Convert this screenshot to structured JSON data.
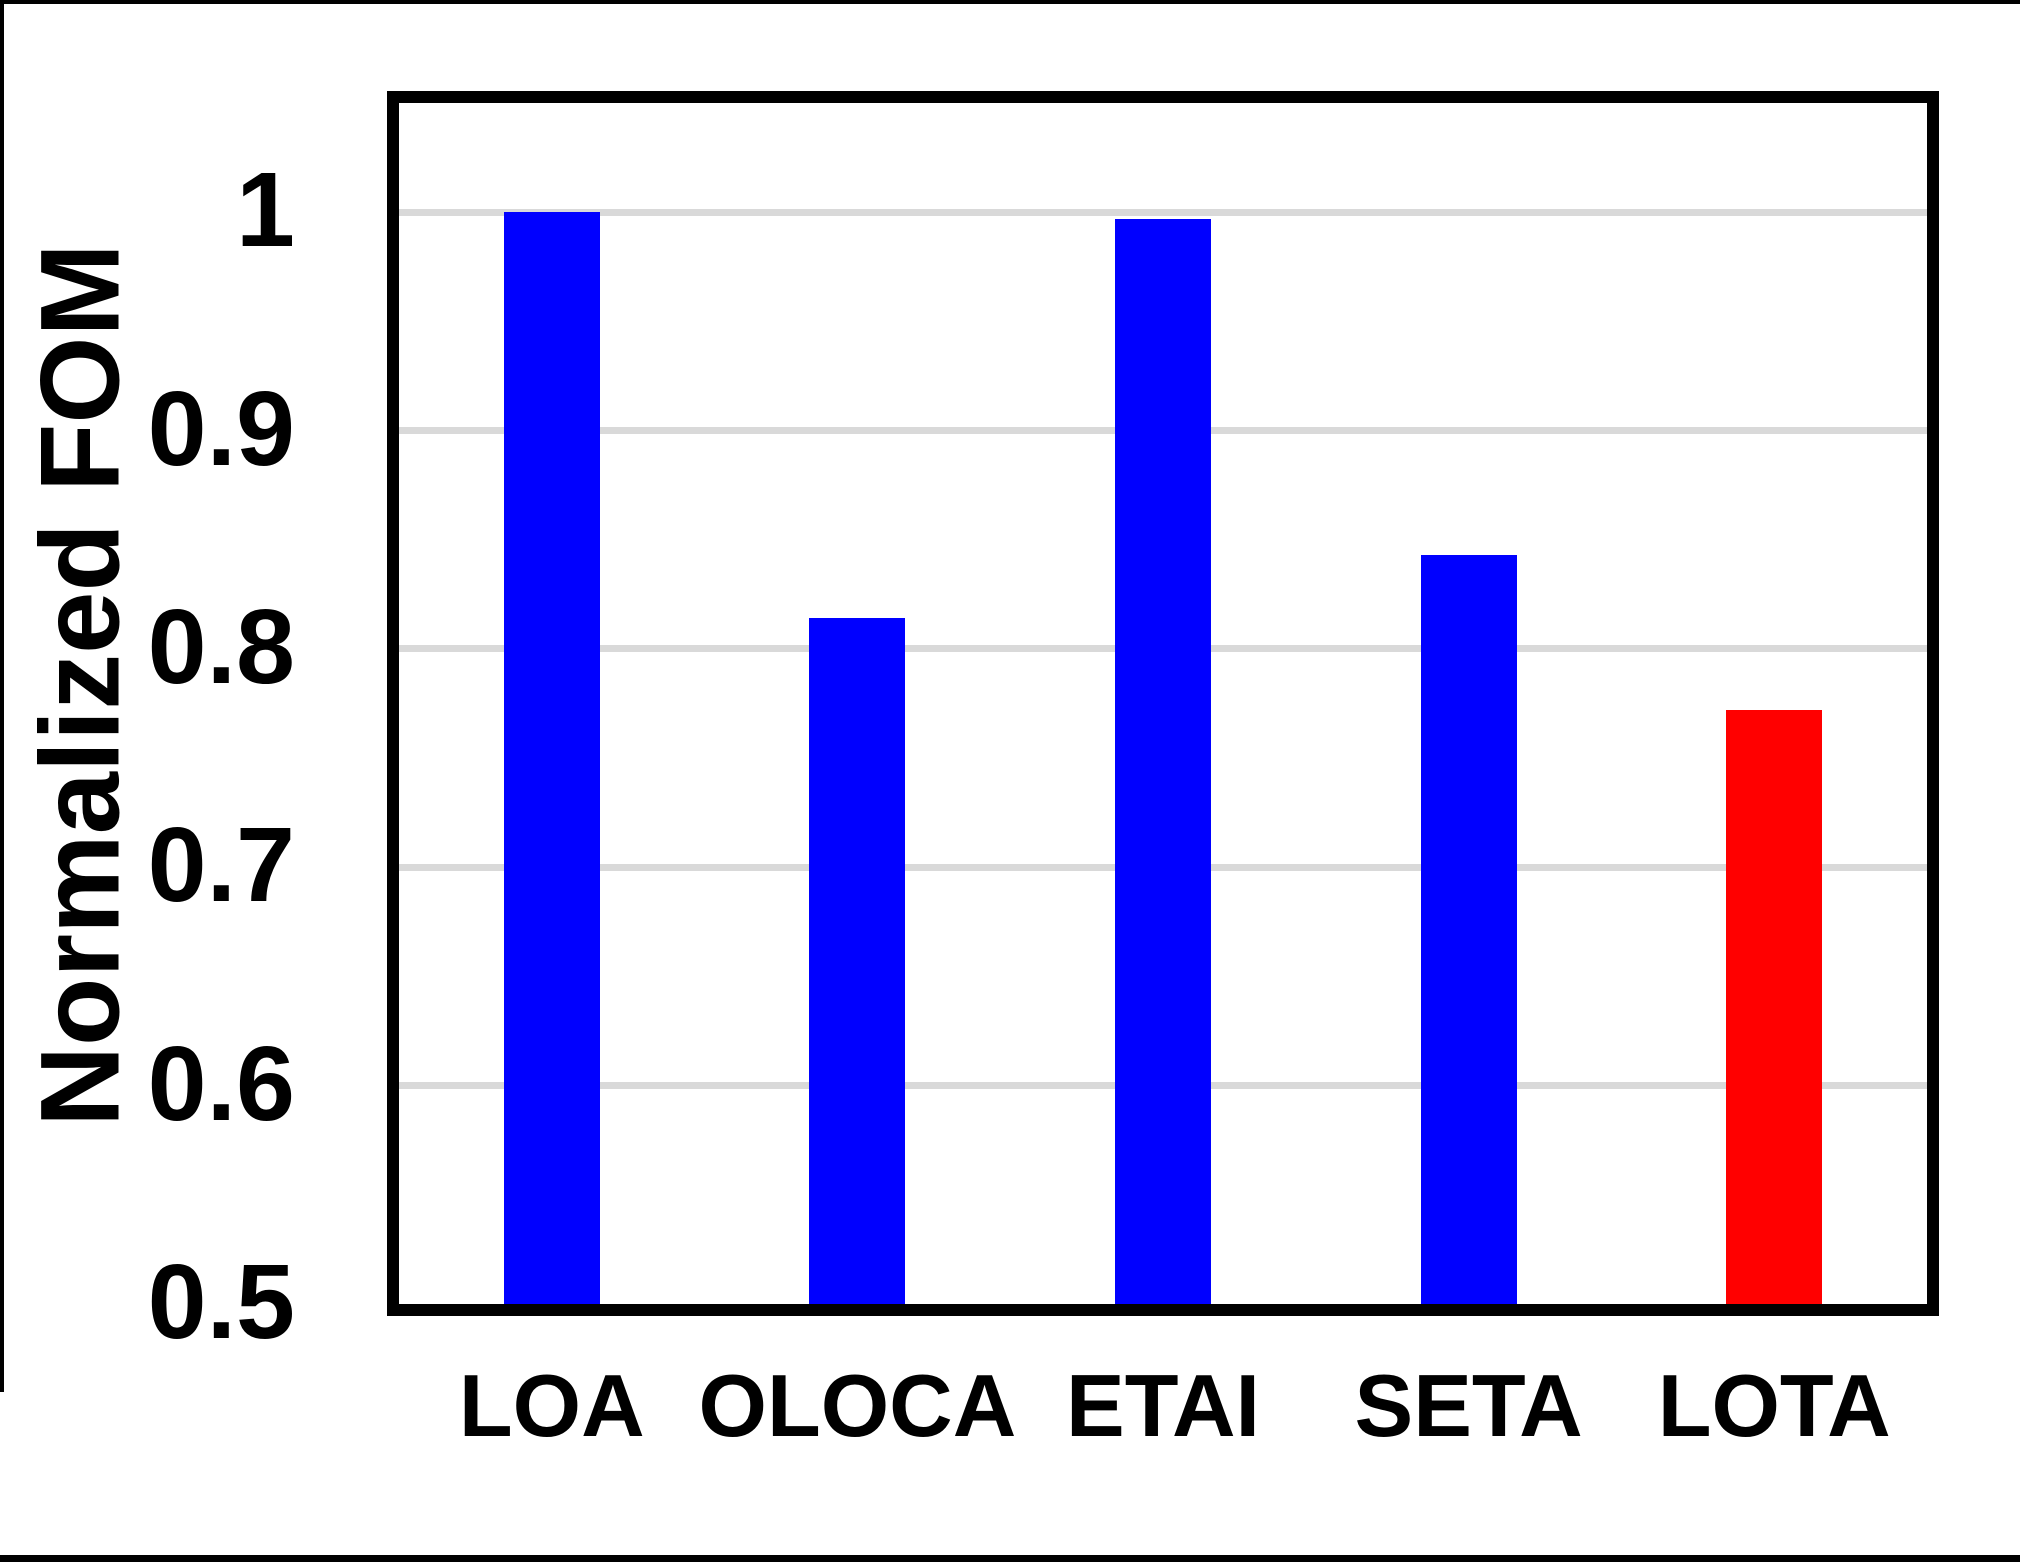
{
  "figure": {
    "kind": "standalone-chart-figure",
    "background": "#ffffff",
    "frame_color": "#000000"
  },
  "chart_data": {
    "type": "bar",
    "title": "",
    "xlabel": "",
    "ylabel": "Normalized FOM",
    "categories": [
      "LOA",
      "OLOCA",
      "ETAI",
      "SETA",
      "LOTA"
    ],
    "values": [
      1.0,
      0.814,
      0.997,
      0.843,
      0.772
    ],
    "colors": [
      "#0000FF",
      "#0000FF",
      "#0000FF",
      "#0000FF",
      "#FF0000"
    ],
    "highlighted_category": "LOTA",
    "highlight_color": "#FF0000",
    "default_bar_color": "#0000FF",
    "ylim": [
      0.5,
      1.05
    ],
    "yticks": [
      {
        "value": 1.0,
        "label": "1"
      },
      {
        "value": 0.9,
        "label": "0.9"
      },
      {
        "value": 0.8,
        "label": "0.8"
      },
      {
        "value": 0.7,
        "label": "0.7"
      },
      {
        "value": 0.6,
        "label": "0.6"
      },
      {
        "value": 0.5,
        "label": "0.5"
      }
    ],
    "grid": "horizontal",
    "gridline_color": "#D9D9D9",
    "axis_color": "#000000",
    "legend": "none"
  }
}
